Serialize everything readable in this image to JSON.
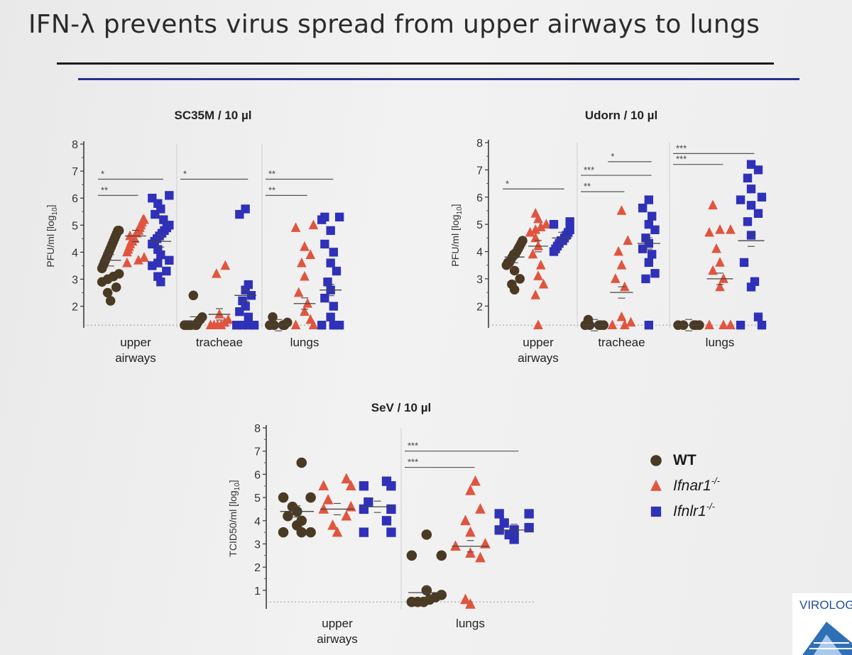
{
  "slide_title": "IFN-λ prevents virus spread from upper airways to lungs",
  "logo_text": "VIROLOG",
  "legend": [
    {
      "label": "WT",
      "shape": "circle",
      "color": "#4a3a24"
    },
    {
      "label": "Ifnar1",
      "sup": "-/-",
      "shape": "triangle",
      "color": "#e0553f"
    },
    {
      "label": "Ifnlr1",
      "sup": "-/-",
      "shape": "square",
      "color": "#2f31b8"
    }
  ],
  "colors": {
    "WT": "#4a3a24",
    "Ifnar1": "#e0553f",
    "Ifnlr1": "#2f31b8"
  },
  "chart_data": [
    {
      "type": "scatter",
      "title": "SC35M / 10 µl",
      "ylabel": "PFU/ml [log",
      "ylabel_sub": "10",
      "ylabel_end": "]",
      "ylim": [
        1.2,
        8
      ],
      "yticks": [
        2,
        3,
        4,
        5,
        6,
        7,
        8
      ],
      "detection_limit": 1.3,
      "groups": [
        {
          "label": [
            "upper",
            "airways"
          ],
          "series": {
            "WT": [
              2.2,
              2.5,
              2.7,
              2.9,
              3.0,
              3.1,
              3.2,
              3.4,
              3.5,
              3.6,
              3.7,
              3.8,
              3.9,
              4.0,
              4.1,
              4.2,
              4.3,
              4.4,
              4.5,
              4.6,
              4.7,
              4.8,
              4.8
            ],
            "Ifnar1": [
              3.6,
              3.7,
              3.8,
              4.0,
              4.1,
              4.2,
              4.3,
              4.4,
              4.5,
              4.6,
              4.7,
              4.8,
              4.9,
              5.0,
              5.1,
              5.2,
              5.2,
              4.5,
              4.4,
              4.8
            ],
            "Ifnlr1": [
              2.9,
              3.1,
              3.3,
              3.5,
              3.7,
              3.9,
              4.1,
              4.3,
              4.5,
              4.6,
              4.7,
              4.8,
              4.9,
              5.0,
              5.2,
              5.4,
              5.6,
              5.8,
              6.0,
              6.1,
              4.4,
              3.6
            ]
          },
          "means": {
            "WT": 3.7,
            "Ifnar1": 4.6,
            "Ifnlr1": 4.4
          }
        },
        {
          "label": [
            "tracheae"
          ],
          "series": {
            "WT": [
              1.3,
              1.3,
              1.3,
              1.3,
              1.3,
              1.3,
              1.4,
              1.5,
              1.6,
              2.4
            ],
            "Ifnar1": [
              1.3,
              1.3,
              1.3,
              1.3,
              1.4,
              1.5,
              1.7,
              3.2,
              3.5
            ],
            "Ifnlr1": [
              1.3,
              1.3,
              1.3,
              1.3,
              1.6,
              1.8,
              2.0,
              2.2,
              2.4,
              2.6,
              2.8,
              5.4,
              5.6
            ]
          },
          "means": {
            "WT": 1.4,
            "Ifnar1": 1.7,
            "Ifnlr1": 2.4
          }
        },
        {
          "label": [
            "lungs"
          ],
          "series": {
            "WT": [
              1.3,
              1.3,
              1.3,
              1.3,
              1.4,
              1.6
            ],
            "Ifnar1": [
              1.3,
              1.3,
              1.5,
              1.8,
              2.1,
              2.5,
              3.1,
              3.6,
              3.9,
              4.2,
              4.9,
              5.0
            ],
            "Ifnlr1": [
              1.3,
              1.3,
              1.3,
              1.6,
              2.0,
              2.3,
              2.6,
              2.9,
              3.3,
              3.6,
              4.0,
              4.3,
              4.8,
              5.2,
              5.3,
              5.3
            ]
          },
          "means": {
            "WT": 1.3,
            "Ifnar1": 2.1,
            "Ifnlr1": 2.6
          }
        }
      ],
      "significance": [
        {
          "group": 0,
          "from": 0,
          "to": 2,
          "y": 6.7,
          "label": "*"
        },
        {
          "group": 0,
          "from": 0,
          "to": 1,
          "y": 6.1,
          "label": "**"
        },
        {
          "group": 1,
          "from": 0,
          "to": 2,
          "y": 6.7,
          "label": "*"
        },
        {
          "group": 2,
          "from": 0,
          "to": 2,
          "y": 6.7,
          "label": "**"
        },
        {
          "group": 2,
          "from": 0,
          "to": 1,
          "y": 6.1,
          "label": "**"
        }
      ]
    },
    {
      "type": "scatter",
      "title": "Udorn / 10 µl",
      "ylabel": "PFU/ml [log",
      "ylabel_sub": "10",
      "ylabel_end": "]",
      "ylim": [
        1.2,
        8
      ],
      "yticks": [
        2,
        3,
        4,
        5,
        6,
        7,
        8
      ],
      "detection_limit": 1.3,
      "groups": [
        {
          "label": [
            "upper",
            "airways"
          ],
          "series": {
            "WT": [
              2.6,
              2.8,
              3.0,
              3.3,
              3.5,
              3.6,
              3.7,
              3.8,
              3.9,
              4.0,
              4.1,
              4.2,
              4.3,
              4.4,
              3.6,
              3.9
            ],
            "Ifnar1": [
              1.3,
              2.4,
              2.8,
              3.1,
              3.5,
              3.9,
              4.2,
              4.5,
              4.7,
              4.9,
              5.0,
              5.2,
              5.4,
              4.8
            ],
            "Ifnlr1": [
              4.0,
              4.1,
              4.2,
              4.3,
              4.4,
              4.5,
              4.6,
              4.7,
              4.8,
              5.0,
              5.1,
              4.4
            ]
          },
          "means": {
            "WT": 3.8,
            "Ifnar1": 4.2,
            "Ifnlr1": 4.5
          }
        },
        {
          "label": [
            "tracheae"
          ],
          "series": {
            "WT": [
              1.3,
              1.3,
              1.3,
              1.3,
              1.3,
              1.5
            ],
            "Ifnar1": [
              1.3,
              1.3,
              1.4,
              1.6,
              2.7,
              3.0,
              3.5,
              4.0,
              4.4,
              5.5
            ],
            "Ifnlr1": [
              1.3,
              3.0,
              3.2,
              3.6,
              3.9,
              4.1,
              4.3,
              4.5,
              4.8,
              5.0,
              5.3,
              5.6,
              5.9
            ]
          },
          "means": {
            "WT": 1.3,
            "Ifnar1": 2.5,
            "Ifnlr1": 4.3
          }
        },
        {
          "label": [
            "lungs"
          ],
          "series": {
            "WT": [
              1.3,
              1.3,
              1.3,
              1.3,
              1.3
            ],
            "Ifnar1": [
              1.3,
              1.3,
              1.3,
              2.7,
              3.0,
              3.3,
              3.6,
              4.1,
              4.7,
              4.8,
              4.8,
              5.7
            ],
            "Ifnlr1": [
              1.3,
              1.3,
              1.6,
              2.7,
              2.9,
              3.6,
              4.6,
              5.1,
              5.4,
              5.7,
              6.0,
              6.3,
              6.7,
              7.0,
              7.2,
              5.9
            ]
          },
          "means": {
            "WT": 1.3,
            "Ifnar1": 3.0,
            "Ifnlr1": 4.4
          }
        }
      ],
      "significance": [
        {
          "group": 0,
          "from": 0,
          "to": 2,
          "y": 6.3,
          "label": "*"
        },
        {
          "group": 1,
          "from": 0,
          "to": 2,
          "y": 6.8,
          "label": "***"
        },
        {
          "group": 1,
          "from": 0,
          "to": 1,
          "y": 6.2,
          "label": "**"
        },
        {
          "group": 1,
          "from": 1,
          "to": 2,
          "y": 7.3,
          "label": "*"
        },
        {
          "group": 2,
          "from": 0,
          "to": 2,
          "y": 7.6,
          "label": "***"
        },
        {
          "group": 2,
          "from": 0,
          "to": 1,
          "y": 7.2,
          "label": "***"
        }
      ]
    },
    {
      "type": "scatter",
      "title": "SeV / 10 µl",
      "ylabel": "TCID50/ml [log",
      "ylabel_sub": "10",
      "ylabel_end": "]",
      "ylim": [
        0.2,
        8
      ],
      "yticks": [
        1,
        2,
        3,
        4,
        5,
        6,
        7,
        8
      ],
      "detection_limit": 0.5,
      "groups": [
        {
          "label": [
            "upper",
            "airways"
          ],
          "series": {
            "WT": [
              3.5,
              3.5,
              3.5,
              3.8,
              4.0,
              4.2,
              4.4,
              4.6,
              5.0,
              5.0,
              6.5
            ],
            "Ifnar1": [
              3.5,
              3.8,
              4.2,
              4.5,
              4.6,
              4.9,
              5.5,
              5.5,
              5.8
            ],
            "Ifnlr1": [
              3.5,
              3.5,
              4.0,
              4.5,
              4.5,
              4.8,
              5.5,
              5.5,
              5.7
            ]
          },
          "means": {
            "WT": 4.4,
            "Ifnar1": 4.5,
            "Ifnlr1": 4.6
          }
        },
        {
          "label": [
            "lungs"
          ],
          "series": {
            "WT": [
              0.5,
              0.5,
              0.5,
              0.6,
              0.7,
              0.8,
              1.0,
              2.5,
              2.5,
              3.4
            ],
            "Ifnar1": [
              0.4,
              0.6,
              2.4,
              2.6,
              2.9,
              3.0,
              3.5,
              4.0,
              4.5,
              5.3,
              5.7
            ],
            "Ifnlr1": [
              3.2,
              3.4,
              3.6,
              3.6,
              3.7,
              3.9,
              4.3,
              4.3
            ]
          },
          "means": {
            "WT": 0.9,
            "Ifnar1": 2.9,
            "Ifnlr1": 3.6
          }
        }
      ],
      "significance": [
        {
          "group": 1,
          "from": 0,
          "to": 2,
          "y": 7.0,
          "label": "***"
        },
        {
          "group": 1,
          "from": 0,
          "to": 1,
          "y": 6.3,
          "label": "***"
        }
      ]
    }
  ]
}
